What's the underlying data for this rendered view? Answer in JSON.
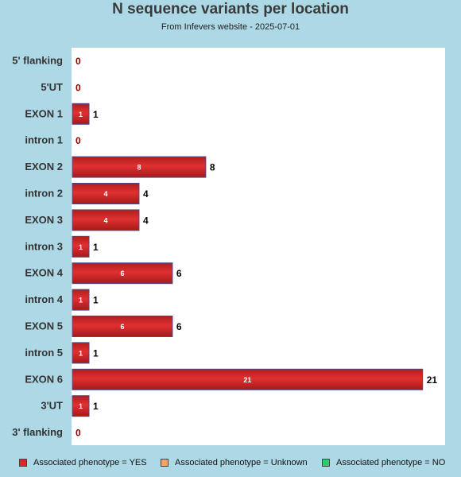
{
  "title": "N sequence variants per location",
  "subtitle": "From Infevers website - 2025-07-01",
  "colors": {
    "background": "#add8e6",
    "plot_background": "#ffffff",
    "bar": "#d42a2a",
    "bar_dark": "#a01818",
    "bar_border": "#4a4a8a"
  },
  "legend": [
    {
      "label": "Associated phenotype = YES",
      "color": "#d42a2a"
    },
    {
      "label": "Associated phenotype = Unknown",
      "color": "#f4a460"
    },
    {
      "label": "Associated phenotype = NO",
      "color": "#2ecc71"
    }
  ],
  "chart_data": {
    "type": "bar",
    "orientation": "horizontal",
    "title": "N sequence variants per location",
    "subtitle": "From Infevers website - 2025-07-01",
    "categories": [
      "5' flanking",
      "5'UT",
      "EXON 1",
      "intron 1",
      "EXON 2",
      "intron 2",
      "EXON 3",
      "intron 3",
      "EXON 4",
      "intron 4",
      "EXON 5",
      "intron 5",
      "EXON 6",
      "3'UT",
      "3' flanking"
    ],
    "series": [
      {
        "name": "Associated phenotype = YES",
        "values": [
          0,
          0,
          1,
          0,
          8,
          4,
          4,
          1,
          6,
          1,
          6,
          1,
          21,
          1,
          0
        ]
      },
      {
        "name": "Associated phenotype = Unknown",
        "values": [
          0,
          0,
          0,
          0,
          0,
          0,
          0,
          0,
          0,
          0,
          0,
          0,
          0,
          0,
          0
        ]
      },
      {
        "name": "Associated phenotype = NO",
        "values": [
          0,
          0,
          0,
          0,
          0,
          0,
          0,
          0,
          0,
          0,
          0,
          0,
          0,
          0,
          0
        ]
      }
    ],
    "totals": [
      0,
      0,
      1,
      0,
      8,
      4,
      4,
      1,
      6,
      1,
      6,
      1,
      21,
      1,
      0
    ],
    "xlim": [
      0,
      22.3
    ],
    "grid": false,
    "legend_position": "bottom"
  }
}
